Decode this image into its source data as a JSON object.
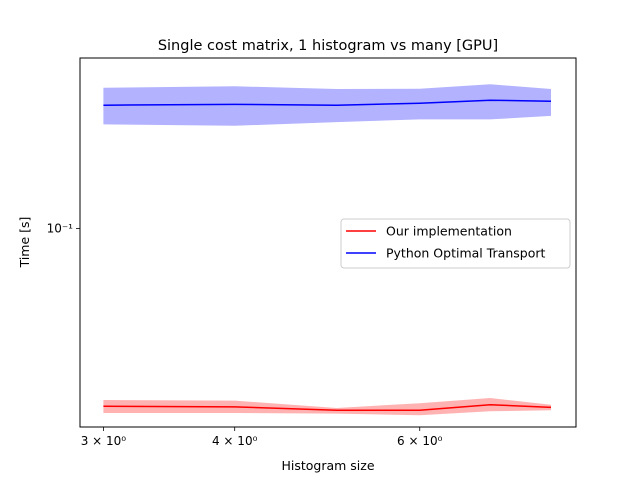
{
  "chart_data": {
    "type": "line",
    "title": "Single cost matrix, 1 histogram vs many [GPU]",
    "xlabel": "Histogram size",
    "ylabel": "Time [s]",
    "x_scale": "log",
    "y_scale": "log",
    "x": [
      3,
      4,
      5,
      6,
      7,
      8
    ],
    "xlim": [
      2.85,
      8.45
    ],
    "ylim": [
      0.0178,
      0.44
    ],
    "x_ticks": [
      {
        "value": 3,
        "label": "3 × 10⁰"
      },
      {
        "value": 4,
        "label": "4 × 10⁰"
      },
      {
        "value": 6,
        "label": "6 × 10⁰"
      }
    ],
    "y_ticks": [
      {
        "value": 0.1,
        "label": "10⁻¹"
      }
    ],
    "series": [
      {
        "name": "Our implementation",
        "color": "#ff0000",
        "band_color": "#ff0000",
        "values": [
          0.0213,
          0.0212,
          0.0206,
          0.0206,
          0.0216,
          0.0211
        ],
        "lower": [
          0.0201,
          0.0201,
          0.02,
          0.0197,
          0.0204,
          0.0206
        ],
        "upper": [
          0.0225,
          0.0224,
          0.021,
          0.0219,
          0.0229,
          0.0216
        ]
      },
      {
        "name": "Python Optimal Transport",
        "color": "#0000ff",
        "band_color": "#0000ff",
        "values": [
          0.292,
          0.294,
          0.292,
          0.297,
          0.305,
          0.302
        ],
        "lower": [
          0.247,
          0.244,
          0.252,
          0.258,
          0.258,
          0.266
        ],
        "upper": [
          0.34,
          0.344,
          0.336,
          0.337,
          0.35,
          0.336
        ]
      }
    ],
    "grid": false,
    "legend_position": "center-right"
  }
}
